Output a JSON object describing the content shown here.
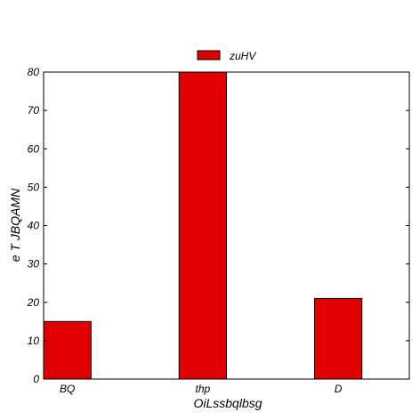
{
  "chart_data": {
    "type": "bar",
    "categories": [
      "BQ",
      "thp",
      "D"
    ],
    "series": [
      {
        "name": "zuHV",
        "values": [
          15,
          80,
          21
        ],
        "color": "#e00000"
      }
    ],
    "xlabel": "OiLssbqlbsg",
    "ylabel": "e T JBQAMN",
    "ylim": [
      0,
      80
    ],
    "yticks": [
      0,
      10,
      20,
      30,
      40,
      50,
      60,
      70,
      80
    ],
    "yticks_text": [
      "0",
      "10",
      "20",
      "30",
      "40",
      "50",
      "60",
      "70",
      "80"
    ],
    "grid": false,
    "legend_position": "top-center"
  }
}
